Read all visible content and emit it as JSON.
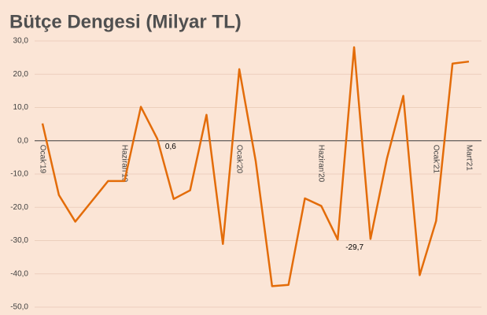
{
  "chart_data": {
    "type": "line",
    "title": "Bütçe Dengesi (Milyar TL)",
    "categories": [
      "Ocak'19",
      null,
      null,
      null,
      null,
      "Haziran'19",
      null,
      null,
      null,
      null,
      null,
      null,
      "Ocak'20",
      null,
      null,
      null,
      null,
      "Haziran'20",
      null,
      null,
      null,
      null,
      null,
      null,
      "Ocak'21",
      null,
      "Mart'21"
    ],
    "values": [
      5.2,
      -16.3,
      -24.3,
      -18.2,
      -12.1,
      -12.1,
      10.2,
      0.6,
      -17.5,
      -14.9,
      7.8,
      -31.0,
      21.5,
      -6.1,
      -43.7,
      -43.3,
      -17.3,
      -19.6,
      -29.7,
      28.1,
      -29.5,
      -5.4,
      13.5,
      -40.4,
      -24.1,
      23.2,
      23.8
    ],
    "value_labels": [
      null,
      null,
      null,
      null,
      null,
      null,
      null,
      "0,6",
      null,
      null,
      null,
      null,
      null,
      null,
      null,
      null,
      null,
      null,
      "-29,7",
      null,
      null,
      null,
      null,
      null,
      null,
      null,
      null
    ],
    "color": "#e36c09",
    "ylim": [
      -50,
      30
    ],
    "yticks": [
      {
        "value": -50,
        "label": "-50,0"
      },
      {
        "value": -40,
        "label": "-40,0"
      },
      {
        "value": -30,
        "label": "-30,0"
      },
      {
        "value": -20,
        "label": "-20,0"
      },
      {
        "value": -10,
        "label": "-10,0"
      },
      {
        "value": 0,
        "label": "0,0"
      },
      {
        "value": 10,
        "label": "10,0"
      },
      {
        "value": 20,
        "label": "20,0"
      },
      {
        "value": 30,
        "label": "30,0"
      }
    ],
    "grid": true
  }
}
